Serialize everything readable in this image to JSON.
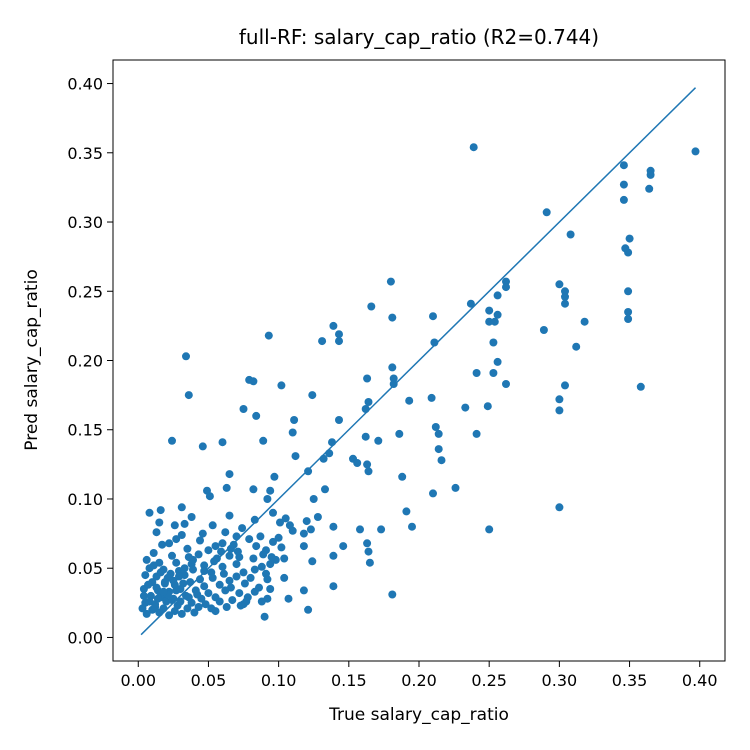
{
  "chart_data": {
    "type": "scatter",
    "title": "full-RF: salary_cap_ratio (R2=0.744)",
    "xlabel": "True salary_cap_ratio",
    "ylabel": "Pred salary_cap_ratio",
    "xlim": [
      -0.018,
      0.418
    ],
    "ylim": [
      -0.017,
      0.417
    ],
    "xticks": [
      0.0,
      0.05,
      0.1,
      0.15,
      0.2,
      0.25,
      0.3,
      0.35,
      0.4
    ],
    "xtick_labels": [
      "0.00",
      "0.05",
      "0.10",
      "0.15",
      "0.20",
      "0.25",
      "0.30",
      "0.35",
      "0.40"
    ],
    "yticks": [
      0.0,
      0.05,
      0.1,
      0.15,
      0.2,
      0.25,
      0.3,
      0.35,
      0.4
    ],
    "ytick_labels": [
      "0.00",
      "0.05",
      "0.10",
      "0.15",
      "0.20",
      "0.25",
      "0.30",
      "0.35",
      "0.40"
    ],
    "identity_line": {
      "from": [
        0.002,
        0.002
      ],
      "to": [
        0.397,
        0.397
      ]
    },
    "color": "#1f77b4",
    "grid": false,
    "points": [
      [
        0.239,
        0.354
      ],
      [
        0.397,
        0.351
      ],
      [
        0.346,
        0.341
      ],
      [
        0.365,
        0.337
      ],
      [
        0.365,
        0.334
      ],
      [
        0.346,
        0.327
      ],
      [
        0.364,
        0.324
      ],
      [
        0.346,
        0.316
      ],
      [
        0.291,
        0.307
      ],
      [
        0.308,
        0.291
      ],
      [
        0.35,
        0.288
      ],
      [
        0.347,
        0.281
      ],
      [
        0.349,
        0.278
      ],
      [
        0.18,
        0.257
      ],
      [
        0.262,
        0.257
      ],
      [
        0.3,
        0.255
      ],
      [
        0.262,
        0.253
      ],
      [
        0.304,
        0.25
      ],
      [
        0.349,
        0.25
      ],
      [
        0.256,
        0.247
      ],
      [
        0.304,
        0.246
      ],
      [
        0.304,
        0.241
      ],
      [
        0.237,
        0.241
      ],
      [
        0.166,
        0.239
      ],
      [
        0.25,
        0.236
      ],
      [
        0.349,
        0.235
      ],
      [
        0.256,
        0.233
      ],
      [
        0.181,
        0.231
      ],
      [
        0.349,
        0.23
      ],
      [
        0.21,
        0.232
      ],
      [
        0.25,
        0.228
      ],
      [
        0.254,
        0.228
      ],
      [
        0.318,
        0.228
      ],
      [
        0.139,
        0.225
      ],
      [
        0.289,
        0.222
      ],
      [
        0.093,
        0.218
      ],
      [
        0.143,
        0.219
      ],
      [
        0.143,
        0.214
      ],
      [
        0.131,
        0.214
      ],
      [
        0.211,
        0.213
      ],
      [
        0.253,
        0.213
      ],
      [
        0.312,
        0.21
      ],
      [
        0.034,
        0.203
      ],
      [
        0.256,
        0.199
      ],
      [
        0.181,
        0.195
      ],
      [
        0.182,
        0.187
      ],
      [
        0.163,
        0.187
      ],
      [
        0.079,
        0.186
      ],
      [
        0.082,
        0.185
      ],
      [
        0.102,
        0.182
      ],
      [
        0.182,
        0.183
      ],
      [
        0.262,
        0.183
      ],
      [
        0.304,
        0.182
      ],
      [
        0.036,
        0.175
      ],
      [
        0.124,
        0.175
      ],
      [
        0.358,
        0.181
      ],
      [
        0.241,
        0.191
      ],
      [
        0.253,
        0.191
      ],
      [
        0.193,
        0.171
      ],
      [
        0.209,
        0.173
      ],
      [
        0.164,
        0.17
      ],
      [
        0.3,
        0.172
      ],
      [
        0.233,
        0.166
      ],
      [
        0.249,
        0.167
      ],
      [
        0.162,
        0.165
      ],
      [
        0.075,
        0.165
      ],
      [
        0.3,
        0.164
      ],
      [
        0.084,
        0.16
      ],
      [
        0.143,
        0.157
      ],
      [
        0.111,
        0.157
      ],
      [
        0.212,
        0.152
      ],
      [
        0.214,
        0.147
      ],
      [
        0.186,
        0.147
      ],
      [
        0.241,
        0.147
      ],
      [
        0.11,
        0.148
      ],
      [
        0.138,
        0.141
      ],
      [
        0.171,
        0.142
      ],
      [
        0.024,
        0.142
      ],
      [
        0.06,
        0.141
      ],
      [
        0.046,
        0.138
      ],
      [
        0.089,
        0.142
      ],
      [
        0.162,
        0.145
      ],
      [
        0.214,
        0.136
      ],
      [
        0.136,
        0.133
      ],
      [
        0.132,
        0.129
      ],
      [
        0.112,
        0.131
      ],
      [
        0.153,
        0.129
      ],
      [
        0.216,
        0.128
      ],
      [
        0.163,
        0.125
      ],
      [
        0.156,
        0.126
      ],
      [
        0.121,
        0.12
      ],
      [
        0.164,
        0.12
      ],
      [
        0.065,
        0.118
      ],
      [
        0.097,
        0.116
      ],
      [
        0.188,
        0.116
      ],
      [
        0.063,
        0.108
      ],
      [
        0.082,
        0.107
      ],
      [
        0.049,
        0.106
      ],
      [
        0.094,
        0.106
      ],
      [
        0.133,
        0.107
      ],
      [
        0.21,
        0.104
      ],
      [
        0.051,
        0.102
      ],
      [
        0.226,
        0.108
      ],
      [
        0.092,
        0.1
      ],
      [
        0.125,
        0.1
      ],
      [
        0.3,
        0.094
      ],
      [
        0.031,
        0.094
      ],
      [
        0.008,
        0.09
      ],
      [
        0.016,
        0.092
      ],
      [
        0.038,
        0.087
      ],
      [
        0.065,
        0.088
      ],
      [
        0.083,
        0.085
      ],
      [
        0.096,
        0.09
      ],
      [
        0.105,
        0.086
      ],
      [
        0.12,
        0.084
      ],
      [
        0.128,
        0.087
      ],
      [
        0.015,
        0.083
      ],
      [
        0.026,
        0.081
      ],
      [
        0.033,
        0.082
      ],
      [
        0.053,
        0.081
      ],
      [
        0.074,
        0.079
      ],
      [
        0.101,
        0.083
      ],
      [
        0.108,
        0.081
      ],
      [
        0.123,
        0.078
      ],
      [
        0.139,
        0.08
      ],
      [
        0.191,
        0.091
      ],
      [
        0.195,
        0.08
      ],
      [
        0.25,
        0.078
      ],
      [
        0.013,
        0.076
      ],
      [
        0.031,
        0.074
      ],
      [
        0.046,
        0.075
      ],
      [
        0.062,
        0.076
      ],
      [
        0.07,
        0.073
      ],
      [
        0.087,
        0.073
      ],
      [
        0.11,
        0.077
      ],
      [
        0.118,
        0.075
      ],
      [
        0.158,
        0.078
      ],
      [
        0.173,
        0.078
      ],
      [
        0.027,
        0.071
      ],
      [
        0.044,
        0.07
      ],
      [
        0.06,
        0.068
      ],
      [
        0.079,
        0.071
      ],
      [
        0.096,
        0.069
      ],
      [
        0.1,
        0.072
      ],
      [
        0.017,
        0.067
      ],
      [
        0.022,
        0.068
      ],
      [
        0.035,
        0.064
      ],
      [
        0.05,
        0.063
      ],
      [
        0.055,
        0.066
      ],
      [
        0.066,
        0.064
      ],
      [
        0.091,
        0.063
      ],
      [
        0.102,
        0.065
      ],
      [
        0.118,
        0.066
      ],
      [
        0.146,
        0.066
      ],
      [
        0.163,
        0.068
      ],
      [
        0.164,
        0.062
      ],
      [
        0.011,
        0.061
      ],
      [
        0.024,
        0.059
      ],
      [
        0.036,
        0.058
      ],
      [
        0.043,
        0.06
      ],
      [
        0.056,
        0.057
      ],
      [
        0.065,
        0.059
      ],
      [
        0.072,
        0.058
      ],
      [
        0.082,
        0.057
      ],
      [
        0.098,
        0.056
      ],
      [
        0.104,
        0.057
      ],
      [
        0.139,
        0.059
      ],
      [
        0.006,
        0.056
      ],
      [
        0.015,
        0.054
      ],
      [
        0.027,
        0.054
      ],
      [
        0.038,
        0.053
      ],
      [
        0.047,
        0.052
      ],
      [
        0.06,
        0.051
      ],
      [
        0.07,
        0.053
      ],
      [
        0.088,
        0.051
      ],
      [
        0.094,
        0.053
      ],
      [
        0.124,
        0.055
      ],
      [
        0.165,
        0.054
      ],
      [
        0.008,
        0.05
      ],
      [
        0.018,
        0.049
      ],
      [
        0.029,
        0.048
      ],
      [
        0.039,
        0.049
      ],
      [
        0.052,
        0.047
      ],
      [
        0.061,
        0.046
      ],
      [
        0.075,
        0.047
      ],
      [
        0.083,
        0.049
      ],
      [
        0.091,
        0.046
      ],
      [
        0.005,
        0.045
      ],
      [
        0.013,
        0.044
      ],
      [
        0.021,
        0.043
      ],
      [
        0.033,
        0.045
      ],
      [
        0.044,
        0.042
      ],
      [
        0.053,
        0.043
      ],
      [
        0.065,
        0.041
      ],
      [
        0.07,
        0.044
      ],
      [
        0.08,
        0.043
      ],
      [
        0.092,
        0.042
      ],
      [
        0.104,
        0.043
      ],
      [
        0.01,
        0.04
      ],
      [
        0.019,
        0.039
      ],
      [
        0.026,
        0.038
      ],
      [
        0.037,
        0.04
      ],
      [
        0.047,
        0.037
      ],
      [
        0.058,
        0.038
      ],
      [
        0.066,
        0.036
      ],
      [
        0.076,
        0.039
      ],
      [
        0.086,
        0.036
      ],
      [
        0.004,
        0.035
      ],
      [
        0.014,
        0.034
      ],
      [
        0.022,
        0.033
      ],
      [
        0.03,
        0.035
      ],
      [
        0.041,
        0.034
      ],
      [
        0.05,
        0.032
      ],
      [
        0.062,
        0.034
      ],
      [
        0.072,
        0.032
      ],
      [
        0.083,
        0.033
      ],
      [
        0.094,
        0.035
      ],
      [
        0.118,
        0.034
      ],
      [
        0.139,
        0.037
      ],
      [
        0.181,
        0.031
      ],
      [
        0.009,
        0.03
      ],
      [
        0.017,
        0.029
      ],
      [
        0.025,
        0.028
      ],
      [
        0.034,
        0.03
      ],
      [
        0.045,
        0.028
      ],
      [
        0.055,
        0.029
      ],
      [
        0.067,
        0.027
      ],
      [
        0.078,
        0.029
      ],
      [
        0.092,
        0.028
      ],
      [
        0.107,
        0.028
      ],
      [
        0.005,
        0.025
      ],
      [
        0.012,
        0.024
      ],
      [
        0.02,
        0.026
      ],
      [
        0.028,
        0.023
      ],
      [
        0.038,
        0.025
      ],
      [
        0.048,
        0.024
      ],
      [
        0.058,
        0.026
      ],
      [
        0.075,
        0.024
      ],
      [
        0.077,
        0.026
      ],
      [
        0.003,
        0.021
      ],
      [
        0.01,
        0.02
      ],
      [
        0.018,
        0.021
      ],
      [
        0.026,
        0.019
      ],
      [
        0.035,
        0.021
      ],
      [
        0.043,
        0.022
      ],
      [
        0.052,
        0.021
      ],
      [
        0.063,
        0.022
      ],
      [
        0.073,
        0.023
      ],
      [
        0.088,
        0.026
      ],
      [
        0.121,
        0.02
      ],
      [
        0.006,
        0.017
      ],
      [
        0.015,
        0.018
      ],
      [
        0.022,
        0.016
      ],
      [
        0.031,
        0.017
      ],
      [
        0.04,
        0.018
      ],
      [
        0.055,
        0.019
      ],
      [
        0.09,
        0.015
      ],
      [
        0.012,
        0.022
      ],
      [
        0.016,
        0.031
      ],
      [
        0.024,
        0.027
      ],
      [
        0.03,
        0.026
      ],
      [
        0.036,
        0.029
      ],
      [
        0.013,
        0.036
      ],
      [
        0.019,
        0.04
      ],
      [
        0.023,
        0.046
      ],
      [
        0.029,
        0.044
      ],
      [
        0.033,
        0.05
      ],
      [
        0.039,
        0.056
      ],
      [
        0.011,
        0.052
      ],
      [
        0.016,
        0.047
      ],
      [
        0.007,
        0.038
      ],
      [
        0.021,
        0.031
      ],
      [
        0.027,
        0.034
      ],
      [
        0.032,
        0.039
      ],
      [
        0.042,
        0.031
      ],
      [
        0.047,
        0.048
      ],
      [
        0.054,
        0.055
      ],
      [
        0.059,
        0.062
      ],
      [
        0.068,
        0.067
      ],
      [
        0.071,
        0.062
      ],
      [
        0.084,
        0.066
      ],
      [
        0.089,
        0.06
      ],
      [
        0.095,
        0.058
      ],
      [
        0.014,
        0.028
      ],
      [
        0.018,
        0.033
      ],
      [
        0.025,
        0.041
      ],
      [
        0.008,
        0.026
      ],
      [
        0.004,
        0.03
      ]
    ]
  }
}
